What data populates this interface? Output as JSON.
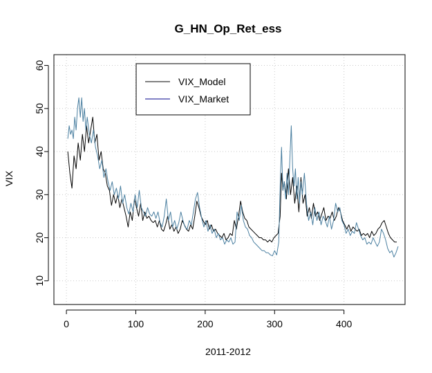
{
  "chart_data": {
    "type": "line",
    "title": "G_HN_Op_Ret_ess",
    "xlabel": "2011-2012",
    "ylabel": "VIX",
    "xlim": [
      -18,
      488
    ],
    "ylim": [
      4.5,
      62.5
    ],
    "x_ticks": [
      0,
      100,
      200,
      300,
      400
    ],
    "y_ticks": [
      10,
      20,
      30,
      40,
      50,
      60
    ],
    "grid": true,
    "legend_position": "top-left",
    "colors": {
      "VIX_Model": "#000000",
      "VIX_Market": "#4a7fa0",
      "legend_market_line": "#00008b",
      "grid": "#c8c8c8"
    },
    "series": [
      {
        "name": "VIX_Model",
        "points": [
          [
            2,
            40
          ],
          [
            5,
            35
          ],
          [
            8,
            31.5
          ],
          [
            11,
            39
          ],
          [
            14,
            36
          ],
          [
            17,
            42
          ],
          [
            20,
            38
          ],
          [
            23,
            44
          ],
          [
            26,
            40
          ],
          [
            29,
            46
          ],
          [
            32,
            42
          ],
          [
            35,
            45
          ],
          [
            38,
            48
          ],
          [
            41,
            42
          ],
          [
            44,
            44
          ],
          [
            47,
            38
          ],
          [
            50,
            40
          ],
          [
            53,
            36
          ],
          [
            56,
            35
          ],
          [
            59,
            32
          ],
          [
            62,
            31
          ],
          [
            65,
            27.5
          ],
          [
            68,
            30
          ],
          [
            71,
            28
          ],
          [
            74,
            30
          ],
          [
            77,
            27
          ],
          [
            80,
            29
          ],
          [
            83,
            27
          ],
          [
            86,
            25
          ],
          [
            89,
            22.5
          ],
          [
            92,
            26
          ],
          [
            95,
            24
          ],
          [
            98,
            29
          ],
          [
            101,
            27
          ],
          [
            104,
            25
          ],
          [
            107,
            28
          ],
          [
            110,
            24
          ],
          [
            113,
            26
          ],
          [
            116,
            24.5
          ],
          [
            119,
            25
          ],
          [
            122,
            24
          ],
          [
            125,
            23.5
          ],
          [
            128,
            24
          ],
          [
            131,
            22.5
          ],
          [
            134,
            24
          ],
          [
            137,
            22
          ],
          [
            140,
            21.5
          ],
          [
            143,
            23
          ],
          [
            146,
            25
          ],
          [
            149,
            22
          ],
          [
            152,
            23
          ],
          [
            155,
            21.5
          ],
          [
            158,
            22.5
          ],
          [
            161,
            21
          ],
          [
            164,
            22
          ],
          [
            167,
            24
          ],
          [
            170,
            23
          ],
          [
            173,
            22
          ],
          [
            176,
            21.5
          ],
          [
            179,
            23
          ],
          [
            182,
            22
          ],
          [
            185,
            25
          ],
          [
            188,
            28.5
          ],
          [
            191,
            27
          ],
          [
            194,
            25
          ],
          [
            197,
            24
          ],
          [
            200,
            23
          ],
          [
            203,
            24
          ],
          [
            206,
            22
          ],
          [
            209,
            23
          ],
          [
            212,
            21.5
          ],
          [
            215,
            22
          ],
          [
            218,
            21
          ],
          [
            221,
            20.5
          ],
          [
            224,
            20
          ],
          [
            227,
            21
          ],
          [
            230,
            19.5
          ],
          [
            233,
            20
          ],
          [
            236,
            21
          ],
          [
            239,
            20.5
          ],
          [
            242,
            24
          ],
          [
            245,
            22
          ],
          [
            248,
            25
          ],
          [
            251,
            28.5
          ],
          [
            254,
            26
          ],
          [
            257,
            24.5
          ],
          [
            260,
            24
          ],
          [
            263,
            22.5
          ],
          [
            266,
            22
          ],
          [
            269,
            21.5
          ],
          [
            272,
            21
          ],
          [
            275,
            20.5
          ],
          [
            278,
            20
          ],
          [
            281,
            20
          ],
          [
            284,
            19.5
          ],
          [
            287,
            19.5
          ],
          [
            290,
            19
          ],
          [
            293,
            19.5
          ],
          [
            296,
            19
          ],
          [
            299,
            20
          ],
          [
            302,
            20.5
          ],
          [
            305,
            21
          ],
          [
            308,
            25
          ],
          [
            310,
            35
          ],
          [
            312,
            31
          ],
          [
            314,
            33
          ],
          [
            317,
            29
          ],
          [
            320,
            36
          ],
          [
            323,
            30
          ],
          [
            326,
            34
          ],
          [
            329,
            28
          ],
          [
            332,
            32
          ],
          [
            335,
            26
          ],
          [
            338,
            34
          ],
          [
            341,
            28
          ],
          [
            344,
            30
          ],
          [
            347,
            25
          ],
          [
            350,
            27
          ],
          [
            353,
            24.5
          ],
          [
            356,
            28
          ],
          [
            359,
            25
          ],
          [
            362,
            26
          ],
          [
            365,
            24
          ],
          [
            368,
            25.5
          ],
          [
            371,
            27
          ],
          [
            374,
            24
          ],
          [
            377,
            25
          ],
          [
            380,
            24.5
          ],
          [
            383,
            26
          ],
          [
            386,
            24
          ],
          [
            389,
            25
          ],
          [
            392,
            27
          ],
          [
            395,
            26
          ],
          [
            398,
            24
          ],
          [
            401,
            23
          ],
          [
            404,
            22
          ],
          [
            407,
            23
          ],
          [
            410,
            21.5
          ],
          [
            413,
            22.5
          ],
          [
            416,
            22
          ],
          [
            419,
            21.5
          ],
          [
            422,
            22
          ],
          [
            425,
            20.5
          ],
          [
            428,
            21
          ],
          [
            431,
            20.5
          ],
          [
            434,
            21
          ],
          [
            437,
            20
          ],
          [
            440,
            21.5
          ],
          [
            443,
            20.5
          ],
          [
            446,
            21
          ],
          [
            449,
            22
          ],
          [
            452,
            22.5
          ],
          [
            455,
            23.5
          ],
          [
            458,
            24
          ],
          [
            461,
            22.5
          ],
          [
            464,
            21
          ],
          [
            467,
            20
          ],
          [
            470,
            19.5
          ],
          [
            473,
            19
          ],
          [
            476,
            19
          ]
        ]
      },
      {
        "name": "VIX_Market",
        "points": [
          [
            2,
            43
          ],
          [
            4,
            46
          ],
          [
            6,
            44
          ],
          [
            8,
            45
          ],
          [
            10,
            43
          ],
          [
            12,
            48
          ],
          [
            14,
            45
          ],
          [
            16,
            50
          ],
          [
            18,
            52.5
          ],
          [
            20,
            48
          ],
          [
            22,
            52.5
          ],
          [
            24,
            47
          ],
          [
            26,
            50
          ],
          [
            28,
            45
          ],
          [
            30,
            48
          ],
          [
            33,
            44
          ],
          [
            36,
            42
          ],
          [
            39,
            45
          ],
          [
            42,
            41
          ],
          [
            45,
            39
          ],
          [
            48,
            36
          ],
          [
            51,
            38
          ],
          [
            54,
            34
          ],
          [
            57,
            36
          ],
          [
            60,
            33
          ],
          [
            63,
            31
          ],
          [
            66,
            33
          ],
          [
            69,
            30
          ],
          [
            72,
            31.5
          ],
          [
            75,
            29
          ],
          [
            78,
            32
          ],
          [
            81,
            28
          ],
          [
            84,
            30
          ],
          [
            87,
            27
          ],
          [
            90,
            25.5
          ],
          [
            93,
            28
          ],
          [
            96,
            26
          ],
          [
            99,
            30
          ],
          [
            102,
            27
          ],
          [
            105,
            31
          ],
          [
            108,
            27
          ],
          [
            111,
            26
          ],
          [
            114,
            25
          ],
          [
            117,
            27
          ],
          [
            120,
            25.5
          ],
          [
            123,
            25
          ],
          [
            126,
            26
          ],
          [
            129,
            24.5
          ],
          [
            132,
            26
          ],
          [
            135,
            23.5
          ],
          [
            138,
            22.5
          ],
          [
            141,
            25
          ],
          [
            144,
            29
          ],
          [
            147,
            24
          ],
          [
            150,
            26
          ],
          [
            153,
            22.5
          ],
          [
            156,
            24
          ],
          [
            159,
            22
          ],
          [
            162,
            23.5
          ],
          [
            165,
            26
          ],
          [
            168,
            24
          ],
          [
            171,
            22.5
          ],
          [
            174,
            22
          ],
          [
            177,
            24
          ],
          [
            180,
            23
          ],
          [
            183,
            26
          ],
          [
            186,
            29
          ],
          [
            189,
            30.5
          ],
          [
            192,
            27
          ],
          [
            195,
            24.5
          ],
          [
            198,
            22.5
          ],
          [
            201,
            24
          ],
          [
            204,
            21.5
          ],
          [
            207,
            23
          ],
          [
            210,
            21
          ],
          [
            213,
            22
          ],
          [
            216,
            20
          ],
          [
            219,
            21
          ],
          [
            222,
            19.5
          ],
          [
            225,
            20
          ],
          [
            228,
            18.5
          ],
          [
            231,
            19.5
          ],
          [
            234,
            19
          ],
          [
            237,
            20
          ],
          [
            240,
            18.5
          ],
          [
            243,
            19
          ],
          [
            246,
            26
          ],
          [
            249,
            24
          ],
          [
            252,
            27.5
          ],
          [
            255,
            24
          ],
          [
            258,
            22.5
          ],
          [
            261,
            22
          ],
          [
            264,
            20.5
          ],
          [
            267,
            20
          ],
          [
            270,
            19
          ],
          [
            273,
            18.5
          ],
          [
            276,
            18
          ],
          [
            279,
            17.5
          ],
          [
            282,
            17
          ],
          [
            285,
            17
          ],
          [
            288,
            16.5
          ],
          [
            291,
            16.5
          ],
          [
            294,
            16
          ],
          [
            297,
            15.8
          ],
          [
            300,
            17
          ],
          [
            303,
            16
          ],
          [
            306,
            19
          ],
          [
            308,
            32
          ],
          [
            310,
            41
          ],
          [
            312,
            31
          ],
          [
            314,
            33
          ],
          [
            316,
            29
          ],
          [
            318,
            35
          ],
          [
            320,
            30
          ],
          [
            322,
            38
          ],
          [
            324,
            46
          ],
          [
            326,
            36
          ],
          [
            328,
            32
          ],
          [
            330,
            36
          ],
          [
            332,
            29
          ],
          [
            334,
            34
          ],
          [
            336,
            28
          ],
          [
            338,
            33
          ],
          [
            340,
            30
          ],
          [
            343,
            35
          ],
          [
            346,
            28
          ],
          [
            349,
            24
          ],
          [
            352,
            26
          ],
          [
            355,
            23
          ],
          [
            358,
            27
          ],
          [
            361,
            24
          ],
          [
            364,
            26
          ],
          [
            367,
            23
          ],
          [
            370,
            25
          ],
          [
            373,
            24
          ],
          [
            376,
            22.5
          ],
          [
            379,
            25
          ],
          [
            382,
            22
          ],
          [
            385,
            24
          ],
          [
            388,
            28
          ],
          [
            391,
            26
          ],
          [
            394,
            27
          ],
          [
            397,
            24
          ],
          [
            400,
            23
          ],
          [
            403,
            21
          ],
          [
            406,
            22
          ],
          [
            409,
            20.5
          ],
          [
            412,
            21.5
          ],
          [
            415,
            21
          ],
          [
            418,
            23.5
          ],
          [
            421,
            22
          ],
          [
            424,
            20.5
          ],
          [
            427,
            19.5
          ],
          [
            430,
            20
          ],
          [
            433,
            18.5
          ],
          [
            436,
            19
          ],
          [
            439,
            18.5
          ],
          [
            442,
            20
          ],
          [
            445,
            19
          ],
          [
            448,
            18
          ],
          [
            451,
            19
          ],
          [
            454,
            22
          ],
          [
            457,
            21
          ],
          [
            460,
            19.5
          ],
          [
            463,
            17.5
          ],
          [
            466,
            16.5
          ],
          [
            469,
            17
          ],
          [
            472,
            15.5
          ],
          [
            475,
            16.5
          ],
          [
            478,
            18
          ]
        ]
      }
    ]
  }
}
